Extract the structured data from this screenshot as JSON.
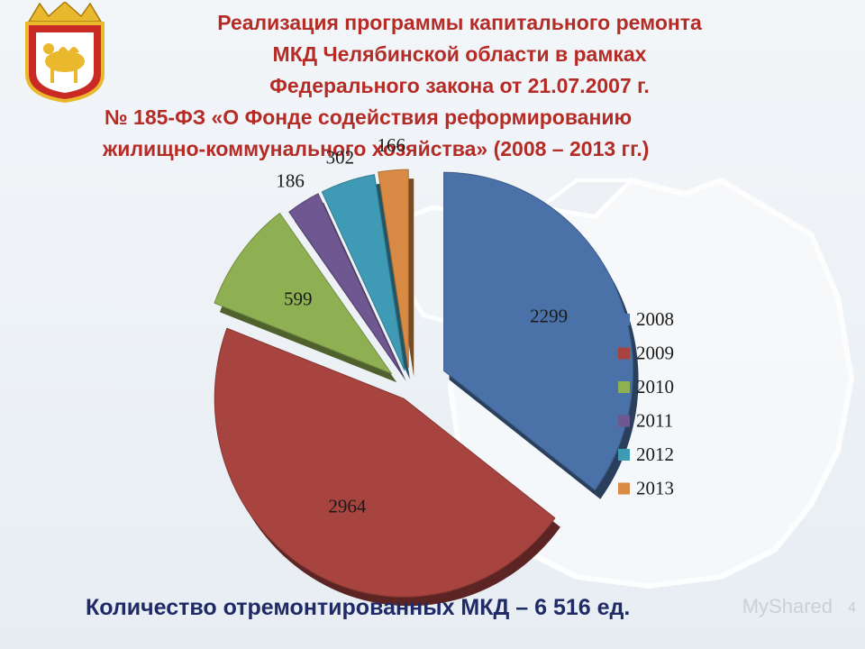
{
  "title": {
    "line1": "Реализация программы капитального ремонта",
    "line2": "МКД Челябинской области в рамках",
    "line3": "Федерального закона от 21.07.2007 г.",
    "line4": "№ 185-ФЗ «О Фонде содействия реформированию",
    "line5": "жилищно-коммунального хозяйства» (2008 – 2013 гг.)"
  },
  "footer": {
    "text": "Количество отремонтированных  МКД – 6 516 ед."
  },
  "watermark": "MyShared",
  "page_number": "4",
  "colors": {
    "title": "#b52b26",
    "footer": "#1f2a66"
  },
  "chart_data": {
    "type": "pie",
    "title": "",
    "categories": [
      "2008",
      "2009",
      "2010",
      "2011",
      "2012",
      "2013"
    ],
    "values": [
      2299,
      2964,
      599,
      186,
      302,
      166
    ],
    "data_labels": [
      "2299",
      "2964",
      "599",
      "186",
      "302",
      "166"
    ],
    "colors": [
      "#4a72a8",
      "#a8443f",
      "#8fb052",
      "#6f5791",
      "#3f9bb5",
      "#d98a44"
    ],
    "style": "exploded 3D pie",
    "legend": {
      "position": "right",
      "entries": [
        "2008",
        "2009",
        "2010",
        "2011",
        "2012",
        "2013"
      ]
    }
  }
}
